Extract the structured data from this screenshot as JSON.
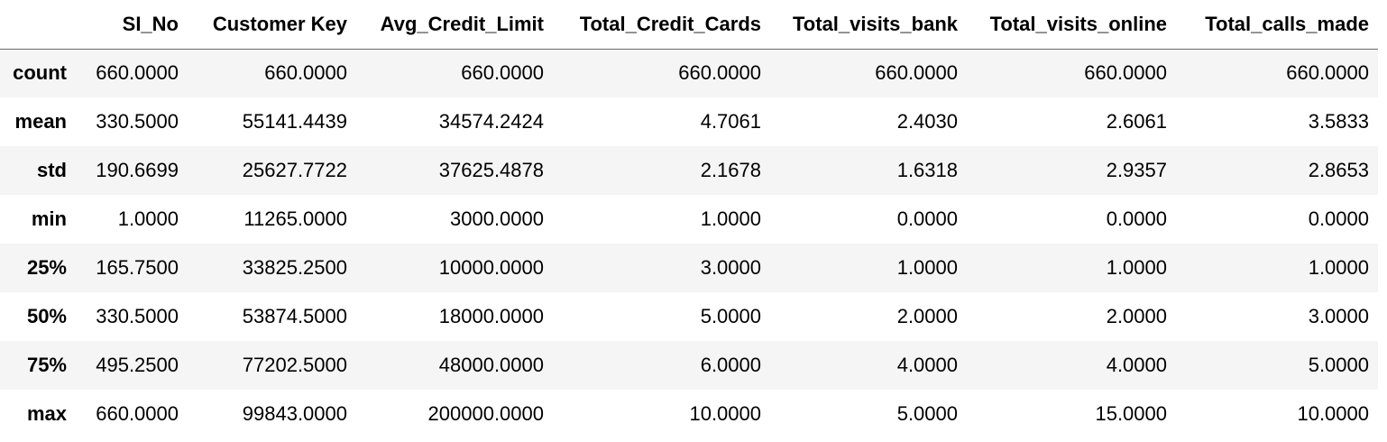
{
  "table": {
    "corner": "",
    "columns": [
      "SI_No",
      "Customer Key",
      "Avg_Credit_Limit",
      "Total_Credit_Cards",
      "Total_visits_bank",
      "Total_visits_online",
      "Total_calls_made"
    ],
    "rows": [
      {
        "index": "count",
        "values": [
          "660.0000",
          "660.0000",
          "660.0000",
          "660.0000",
          "660.0000",
          "660.0000",
          "660.0000"
        ]
      },
      {
        "index": "mean",
        "values": [
          "330.5000",
          "55141.4439",
          "34574.2424",
          "4.7061",
          "2.4030",
          "2.6061",
          "3.5833"
        ]
      },
      {
        "index": "std",
        "values": [
          "190.6699",
          "25627.7722",
          "37625.4878",
          "2.1678",
          "1.6318",
          "2.9357",
          "2.8653"
        ]
      },
      {
        "index": "min",
        "values": [
          "1.0000",
          "11265.0000",
          "3000.0000",
          "1.0000",
          "0.0000",
          "0.0000",
          "0.0000"
        ]
      },
      {
        "index": "25%",
        "values": [
          "165.7500",
          "33825.2500",
          "10000.0000",
          "3.0000",
          "1.0000",
          "1.0000",
          "1.0000"
        ]
      },
      {
        "index": "50%",
        "values": [
          "330.5000",
          "53874.5000",
          "18000.0000",
          "5.0000",
          "2.0000",
          "2.0000",
          "3.0000"
        ]
      },
      {
        "index": "75%",
        "values": [
          "495.2500",
          "77202.5000",
          "48000.0000",
          "6.0000",
          "4.0000",
          "4.0000",
          "5.0000"
        ]
      },
      {
        "index": "max",
        "values": [
          "660.0000",
          "99843.0000",
          "200000.0000",
          "10.0000",
          "5.0000",
          "15.0000",
          "10.0000"
        ]
      }
    ]
  }
}
